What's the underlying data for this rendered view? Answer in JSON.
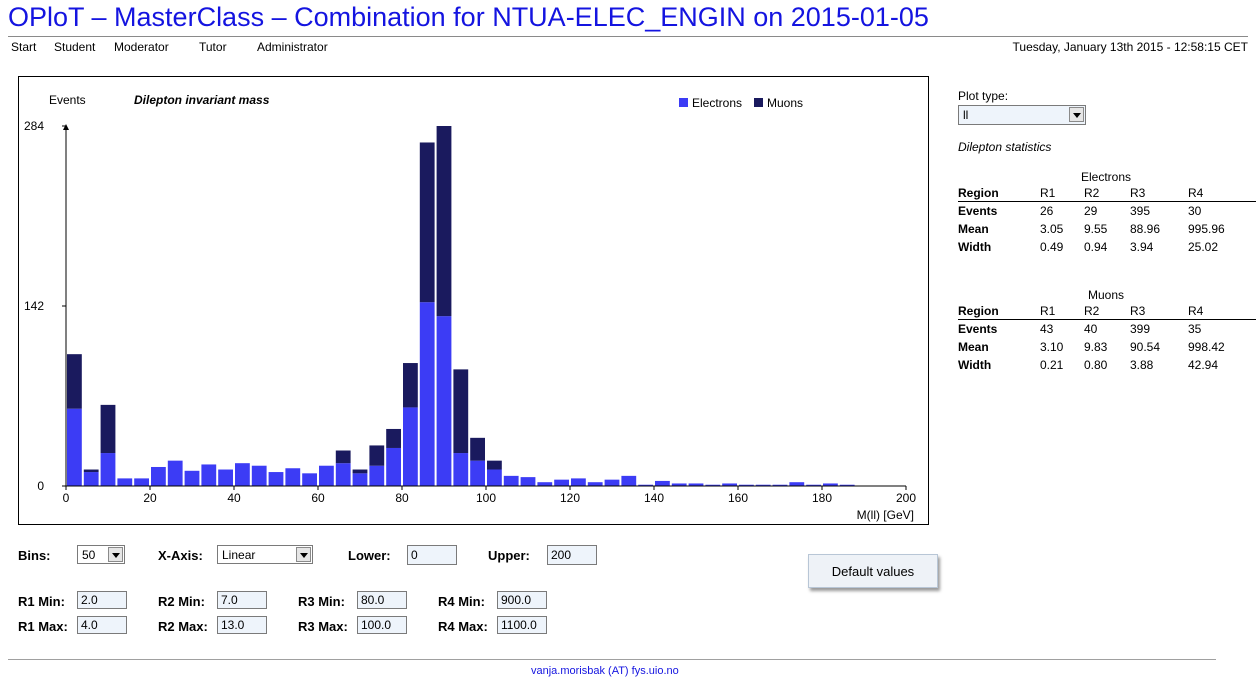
{
  "header": {
    "title": "OPloT – MasterClass – Combination for NTUA-ELEC_ENGIN on 2015-01-05",
    "datetime": "Tuesday, January 13th 2015 - 12:58:15 CET",
    "nav": [
      "Start",
      "Student",
      "Moderator",
      "Tutor",
      "Administrator"
    ]
  },
  "plot": {
    "ylabel": "Events",
    "title": "Dilepton invariant mass",
    "xlabel": "M(ll) [GeV]"
  },
  "chart_data": {
    "type": "bar",
    "stacked": true,
    "title": "Dilepton invariant mass",
    "xlabel": "M(ll) [GeV]",
    "ylabel": "Events",
    "xlim": [
      0,
      200
    ],
    "ylim": [
      0,
      284
    ],
    "x_ticks": [
      0,
      20,
      40,
      60,
      80,
      100,
      120,
      140,
      160,
      180,
      200
    ],
    "y_ticks": [
      0,
      142,
      284
    ],
    "bin_width": 4,
    "legend_position": "top-right",
    "x": [
      2,
      6,
      10,
      14,
      18,
      22,
      26,
      30,
      34,
      38,
      42,
      46,
      50,
      54,
      58,
      62,
      66,
      70,
      74,
      78,
      82,
      86,
      90,
      94,
      98,
      102,
      106,
      110,
      114,
      118,
      122,
      126,
      130,
      134,
      138,
      142,
      146,
      150,
      154,
      158,
      162,
      166,
      170,
      174,
      178,
      182,
      186,
      190,
      194,
      198
    ],
    "series": [
      {
        "name": "Electrons",
        "color": "#3c3cf5",
        "values": [
          61,
          11,
          26,
          6,
          6,
          15,
          20,
          12,
          17,
          13,
          18,
          16,
          11,
          14,
          10,
          16,
          18,
          10,
          16,
          30,
          62,
          145,
          134,
          26,
          20,
          13,
          8,
          7,
          3,
          5,
          6,
          3,
          5,
          8,
          1,
          4,
          2,
          2,
          1,
          2,
          1,
          1,
          1,
          3,
          1,
          2,
          1,
          0,
          0,
          0
        ]
      },
      {
        "name": "Muons",
        "color": "#1a1a5e",
        "values": [
          43,
          2,
          38,
          0,
          0,
          0,
          0,
          0,
          0,
          0,
          0,
          0,
          0,
          0,
          0,
          0,
          10,
          3,
          16,
          15,
          35,
          126,
          150,
          66,
          18,
          7,
          0,
          0,
          0,
          0,
          0,
          0,
          0,
          0,
          0,
          0,
          0,
          0,
          0,
          0,
          0,
          0,
          0,
          0,
          0,
          0,
          0,
          0,
          0,
          0
        ]
      }
    ]
  },
  "controls": {
    "bins_label": "Bins:",
    "bins_value": "50",
    "xaxis_label": "X-Axis:",
    "xaxis_value": "Linear",
    "lower_label": "Lower:",
    "lower_value": "0",
    "upper_label": "Upper:",
    "upper_value": "200",
    "default_button": "Default values",
    "r1_min_label": "R1 Min:",
    "r1_min": "2.0",
    "r1_max_label": "R1 Max:",
    "r1_max": "4.0",
    "r2_min_label": "R2 Min:",
    "r2_min": "7.0",
    "r2_max_label": "R2 Max:",
    "r2_max": "13.0",
    "r3_min_label": "R3 Min:",
    "r3_min": "80.0",
    "r3_max_label": "R3 Max:",
    "r3_max": "100.0",
    "r4_min_label": "R4 Min:",
    "r4_min": "900.0",
    "r4_max_label": "R4 Max:",
    "r4_max": "1100.0"
  },
  "side": {
    "plot_type_label": "Plot type:",
    "plot_type_value": "ll",
    "stats_title": "Dilepton statistics",
    "electrons": {
      "caption": "Electrons",
      "header": [
        "Region",
        "R1",
        "R2",
        "R3",
        "R4"
      ],
      "rows": [
        [
          "Events",
          "26",
          "29",
          "395",
          "30"
        ],
        [
          "Mean",
          "3.05",
          "9.55",
          "88.96",
          "995.96"
        ],
        [
          "Width",
          "0.49",
          "0.94",
          "3.94",
          "25.02"
        ]
      ]
    },
    "muons": {
      "caption": "Muons",
      "header": [
        "Region",
        "R1",
        "R2",
        "R3",
        "R4"
      ],
      "rows": [
        [
          "Events",
          "43",
          "40",
          "399",
          "35"
        ],
        [
          "Mean",
          "3.10",
          "9.83",
          "90.54",
          "998.42"
        ],
        [
          "Width",
          "0.21",
          "0.80",
          "3.88",
          "42.94"
        ]
      ]
    }
  },
  "footer": {
    "contact": "vanja.morisbak (AT) fys.uio.no"
  }
}
